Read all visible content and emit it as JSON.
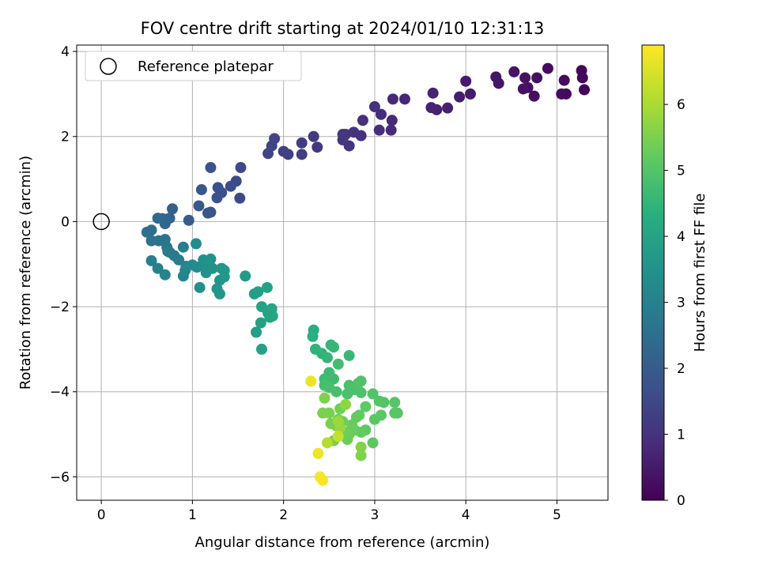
{
  "chart_data": {
    "type": "scatter",
    "title": "FOV centre drift starting at 2024/01/10 12:31:13",
    "xlabel": "Angular distance from reference (arcmin)",
    "ylabel": "Rotation from reference (arcmin)",
    "xlim": [
      -0.27,
      5.56
    ],
    "ylim": [
      -6.55,
      4.15
    ],
    "xticks": [
      0,
      1,
      2,
      3,
      4,
      5
    ],
    "yticks": [
      -6,
      -4,
      -2,
      0,
      2,
      4
    ],
    "grid": true,
    "legend": {
      "placement": "top-left",
      "entries": [
        "Reference platepar"
      ]
    },
    "reference_point": {
      "x": 0,
      "y": 0
    },
    "colorbar": {
      "label": "Hours from first FF file",
      "min": 0,
      "max": 6.9,
      "ticks": [
        0,
        1,
        2,
        3,
        4,
        5,
        6
      ],
      "colormap": "viridis"
    },
    "points": [
      {
        "x": 5.3,
        "y": 3.1,
        "t": 0.1
      },
      {
        "x": 5.27,
        "y": 3.55,
        "t": 0.12
      },
      {
        "x": 5.28,
        "y": 3.38,
        "t": 0.14
      },
      {
        "x": 5.1,
        "y": 3.0,
        "t": 0.16
      },
      {
        "x": 5.08,
        "y": 3.32,
        "t": 0.18
      },
      {
        "x": 5.05,
        "y": 3.0,
        "t": 0.2
      },
      {
        "x": 4.9,
        "y": 3.6,
        "t": 0.22
      },
      {
        "x": 4.75,
        "y": 2.95,
        "t": 0.25
      },
      {
        "x": 4.78,
        "y": 3.38,
        "t": 0.27
      },
      {
        "x": 4.68,
        "y": 3.15,
        "t": 0.3
      },
      {
        "x": 4.65,
        "y": 3.38,
        "t": 0.32
      },
      {
        "x": 4.63,
        "y": 3.12,
        "t": 0.35
      },
      {
        "x": 4.53,
        "y": 3.52,
        "t": 0.38
      },
      {
        "x": 4.36,
        "y": 3.25,
        "t": 0.4
      },
      {
        "x": 4.33,
        "y": 3.4,
        "t": 0.43
      },
      {
        "x": 4.0,
        "y": 3.3,
        "t": 0.5
      },
      {
        "x": 4.05,
        "y": 3.0,
        "t": 0.52
      },
      {
        "x": 3.93,
        "y": 2.93,
        "t": 0.55
      },
      {
        "x": 3.8,
        "y": 2.67,
        "t": 0.6
      },
      {
        "x": 3.68,
        "y": 2.63,
        "t": 0.63
      },
      {
        "x": 3.64,
        "y": 3.02,
        "t": 0.65
      },
      {
        "x": 3.62,
        "y": 2.68,
        "t": 0.68
      },
      {
        "x": 3.33,
        "y": 2.88,
        "t": 0.75
      },
      {
        "x": 3.2,
        "y": 2.88,
        "t": 0.78
      },
      {
        "x": 3.19,
        "y": 2.38,
        "t": 0.8
      },
      {
        "x": 3.18,
        "y": 2.15,
        "t": 0.82
      },
      {
        "x": 3.07,
        "y": 2.52,
        "t": 0.85
      },
      {
        "x": 3.05,
        "y": 2.15,
        "t": 0.88
      },
      {
        "x": 3.0,
        "y": 2.7,
        "t": 0.9
      },
      {
        "x": 2.87,
        "y": 2.38,
        "t": 0.95
      },
      {
        "x": 2.85,
        "y": 2.02,
        "t": 0.98
      },
      {
        "x": 2.77,
        "y": 2.1,
        "t": 1.0
      },
      {
        "x": 2.72,
        "y": 1.78,
        "t": 1.03
      },
      {
        "x": 2.68,
        "y": 2.05,
        "t": 1.05
      },
      {
        "x": 2.65,
        "y": 1.92,
        "t": 1.08
      },
      {
        "x": 2.65,
        "y": 2.05,
        "t": 1.1
      },
      {
        "x": 2.37,
        "y": 1.75,
        "t": 1.15
      },
      {
        "x": 2.33,
        "y": 2.0,
        "t": 1.18
      },
      {
        "x": 2.2,
        "y": 1.85,
        "t": 1.22
      },
      {
        "x": 2.2,
        "y": 1.58,
        "t": 1.25
      },
      {
        "x": 2.05,
        "y": 1.58,
        "t": 1.3
      },
      {
        "x": 2.0,
        "y": 1.65,
        "t": 1.33
      },
      {
        "x": 1.9,
        "y": 1.95,
        "t": 1.37
      },
      {
        "x": 1.87,
        "y": 1.78,
        "t": 1.4
      },
      {
        "x": 1.83,
        "y": 1.6,
        "t": 1.43
      },
      {
        "x": 1.53,
        "y": 1.27,
        "t": 1.52
      },
      {
        "x": 1.52,
        "y": 0.55,
        "t": 1.55
      },
      {
        "x": 1.48,
        "y": 0.95,
        "t": 1.58
      },
      {
        "x": 1.42,
        "y": 0.83,
        "t": 1.62
      },
      {
        "x": 1.32,
        "y": 0.68,
        "t": 1.66
      },
      {
        "x": 1.28,
        "y": 0.8,
        "t": 1.7
      },
      {
        "x": 1.27,
        "y": 0.56,
        "t": 1.73
      },
      {
        "x": 1.2,
        "y": 1.27,
        "t": 1.76
      },
      {
        "x": 1.2,
        "y": 0.22,
        "t": 1.8
      },
      {
        "x": 1.17,
        "y": 0.2,
        "t": 1.83
      },
      {
        "x": 1.1,
        "y": 0.75,
        "t": 1.87
      },
      {
        "x": 1.07,
        "y": 0.37,
        "t": 1.9
      },
      {
        "x": 0.96,
        "y": 0.03,
        "t": 2.0
      },
      {
        "x": 0.78,
        "y": 0.3,
        "t": 2.1
      },
      {
        "x": 0.75,
        "y": 0.08,
        "t": 2.15
      },
      {
        "x": 0.71,
        "y": 0.05,
        "t": 2.2
      },
      {
        "x": 0.7,
        "y": -0.05,
        "t": 2.25
      },
      {
        "x": 0.67,
        "y": 0.07,
        "t": 2.3
      },
      {
        "x": 0.62,
        "y": 0.08,
        "t": 2.35
      },
      {
        "x": 0.55,
        "y": -0.2,
        "t": 2.45
      },
      {
        "x": 0.5,
        "y": -0.25,
        "t": 2.5
      },
      {
        "x": 0.55,
        "y": -0.45,
        "t": 2.55
      },
      {
        "x": 0.63,
        "y": -0.45,
        "t": 2.6
      },
      {
        "x": 0.7,
        "y": -0.42,
        "t": 2.65
      },
      {
        "x": 0.72,
        "y": -0.6,
        "t": 2.7
      },
      {
        "x": 0.75,
        "y": -0.72,
        "t": 2.75
      },
      {
        "x": 0.8,
        "y": -0.8,
        "t": 2.8
      },
      {
        "x": 0.73,
        "y": -0.7,
        "t": 2.83
      },
      {
        "x": 0.85,
        "y": -0.9,
        "t": 2.88
      },
      {
        "x": 0.9,
        "y": -0.6,
        "t": 2.92
      },
      {
        "x": 0.55,
        "y": -0.92,
        "t": 2.95
      },
      {
        "x": 0.62,
        "y": -1.1,
        "t": 3.0
      },
      {
        "x": 0.7,
        "y": -1.25,
        "t": 3.05
      },
      {
        "x": 0.9,
        "y": -1.28,
        "t": 3.1
      },
      {
        "x": 0.92,
        "y": -1.15,
        "t": 3.15
      },
      {
        "x": 0.93,
        "y": -1.05,
        "t": 3.2
      },
      {
        "x": 1.0,
        "y": -1.02,
        "t": 3.25
      },
      {
        "x": 1.05,
        "y": -1.07,
        "t": 3.3
      },
      {
        "x": 1.04,
        "y": -0.52,
        "t": 3.35
      },
      {
        "x": 1.08,
        "y": -1.55,
        "t": 3.4
      },
      {
        "x": 1.12,
        "y": -0.9,
        "t": 3.42
      },
      {
        "x": 1.15,
        "y": -1.05,
        "t": 3.45
      },
      {
        "x": 1.15,
        "y": -1.2,
        "t": 3.48
      },
      {
        "x": 1.2,
        "y": -0.88,
        "t": 3.5
      },
      {
        "x": 1.22,
        "y": -1.1,
        "t": 3.52
      },
      {
        "x": 1.27,
        "y": -1.58,
        "t": 3.55
      },
      {
        "x": 1.3,
        "y": -1.38,
        "t": 3.58
      },
      {
        "x": 1.3,
        "y": -1.7,
        "t": 3.6
      },
      {
        "x": 1.32,
        "y": -1.1,
        "t": 3.62
      },
      {
        "x": 1.35,
        "y": -1.15,
        "t": 3.64
      },
      {
        "x": 1.35,
        "y": -1.3,
        "t": 3.66
      },
      {
        "x": 1.58,
        "y": -1.28,
        "t": 3.75
      },
      {
        "x": 1.68,
        "y": -1.7,
        "t": 3.82
      },
      {
        "x": 1.7,
        "y": -2.6,
        "t": 3.85
      },
      {
        "x": 1.72,
        "y": -1.65,
        "t": 3.88
      },
      {
        "x": 1.75,
        "y": -2.38,
        "t": 3.9
      },
      {
        "x": 1.76,
        "y": -2.0,
        "t": 3.92
      },
      {
        "x": 1.76,
        "y": -3.0,
        "t": 3.94
      },
      {
        "x": 1.82,
        "y": -1.55,
        "t": 3.96
      },
      {
        "x": 1.83,
        "y": -2.15,
        "t": 3.98
      },
      {
        "x": 1.85,
        "y": -2.25,
        "t": 4.0
      },
      {
        "x": 1.87,
        "y": -2.05,
        "t": 4.02
      },
      {
        "x": 1.88,
        "y": -2.22,
        "t": 4.04
      },
      {
        "x": 2.33,
        "y": -2.55,
        "t": 4.3
      },
      {
        "x": 2.32,
        "y": -2.7,
        "t": 4.35
      },
      {
        "x": 2.35,
        "y": -3.0,
        "t": 4.4
      },
      {
        "x": 2.42,
        "y": -3.1,
        "t": 4.45
      },
      {
        "x": 2.48,
        "y": -3.2,
        "t": 4.5
      },
      {
        "x": 2.52,
        "y": -2.9,
        "t": 4.55
      },
      {
        "x": 2.55,
        "y": -2.95,
        "t": 4.58
      },
      {
        "x": 2.72,
        "y": -3.15,
        "t": 4.6
      },
      {
        "x": 2.5,
        "y": -3.55,
        "t": 4.65
      },
      {
        "x": 2.45,
        "y": -3.7,
        "t": 4.7
      },
      {
        "x": 2.55,
        "y": -3.7,
        "t": 4.73
      },
      {
        "x": 2.6,
        "y": -3.35,
        "t": 4.76
      },
      {
        "x": 2.45,
        "y": -3.85,
        "t": 4.8
      },
      {
        "x": 2.5,
        "y": -3.9,
        "t": 4.82
      },
      {
        "x": 2.58,
        "y": -4.0,
        "t": 4.84
      },
      {
        "x": 2.72,
        "y": -3.85,
        "t": 4.86
      },
      {
        "x": 2.7,
        "y": -4.05,
        "t": 4.88
      },
      {
        "x": 2.78,
        "y": -3.95,
        "t": 4.9
      },
      {
        "x": 2.85,
        "y": -4.02,
        "t": 4.92
      },
      {
        "x": 2.82,
        "y": -3.8,
        "t": 4.94
      },
      {
        "x": 2.85,
        "y": -3.75,
        "t": 4.96
      },
      {
        "x": 2.98,
        "y": -4.05,
        "t": 4.98
      },
      {
        "x": 3.05,
        "y": -4.22,
        "t": 5.0
      },
      {
        "x": 3.1,
        "y": -4.25,
        "t": 5.02
      },
      {
        "x": 3.22,
        "y": -4.25,
        "t": 5.04
      },
      {
        "x": 3.25,
        "y": -4.5,
        "t": 5.06
      },
      {
        "x": 3.22,
        "y": -4.5,
        "t": 5.08
      },
      {
        "x": 3.07,
        "y": -4.55,
        "t": 5.1
      },
      {
        "x": 3.0,
        "y": -4.65,
        "t": 5.12
      },
      {
        "x": 2.98,
        "y": -5.2,
        "t": 5.14
      },
      {
        "x": 2.9,
        "y": -4.35,
        "t": 5.16
      },
      {
        "x": 2.9,
        "y": -4.9,
        "t": 5.18
      },
      {
        "x": 2.85,
        "y": -4.95,
        "t": 5.2
      },
      {
        "x": 2.83,
        "y": -4.55,
        "t": 5.22
      },
      {
        "x": 2.8,
        "y": -4.6,
        "t": 5.24
      },
      {
        "x": 2.78,
        "y": -4.9,
        "t": 5.26
      },
      {
        "x": 2.75,
        "y": -4.78,
        "t": 5.28
      },
      {
        "x": 2.72,
        "y": -5.0,
        "t": 5.3
      },
      {
        "x": 2.7,
        "y": -5.12,
        "t": 5.32
      },
      {
        "x": 2.68,
        "y": -4.95,
        "t": 5.34
      },
      {
        "x": 2.65,
        "y": -4.7,
        "t": 5.36
      },
      {
        "x": 2.62,
        "y": -4.4,
        "t": 5.38
      },
      {
        "x": 2.6,
        "y": -4.65,
        "t": 5.4
      },
      {
        "x": 2.58,
        "y": -4.8,
        "t": 5.42
      },
      {
        "x": 2.55,
        "y": -5.15,
        "t": 5.44
      },
      {
        "x": 2.52,
        "y": -4.75,
        "t": 5.46
      },
      {
        "x": 2.5,
        "y": -4.5,
        "t": 5.48
      },
      {
        "x": 2.43,
        "y": -4.5,
        "t": 5.5
      },
      {
        "x": 2.45,
        "y": -4.15,
        "t": 5.52
      },
      {
        "x": 2.85,
        "y": -5.5,
        "t": 5.55
      },
      {
        "x": 2.85,
        "y": -5.3,
        "t": 5.6
      },
      {
        "x": 2.68,
        "y": -4.3,
        "t": 5.7
      },
      {
        "x": 2.62,
        "y": -4.85,
        "t": 5.8
      },
      {
        "x": 2.6,
        "y": -4.7,
        "t": 5.85
      },
      {
        "x": 2.48,
        "y": -5.2,
        "t": 6.1
      },
      {
        "x": 2.6,
        "y": -5.05,
        "t": 6.3
      },
      {
        "x": 2.3,
        "y": -3.75,
        "t": 6.7
      },
      {
        "x": 2.38,
        "y": -5.45,
        "t": 6.75
      },
      {
        "x": 2.4,
        "y": -6.0,
        "t": 6.8
      },
      {
        "x": 2.43,
        "y": -6.08,
        "t": 6.85
      }
    ]
  }
}
